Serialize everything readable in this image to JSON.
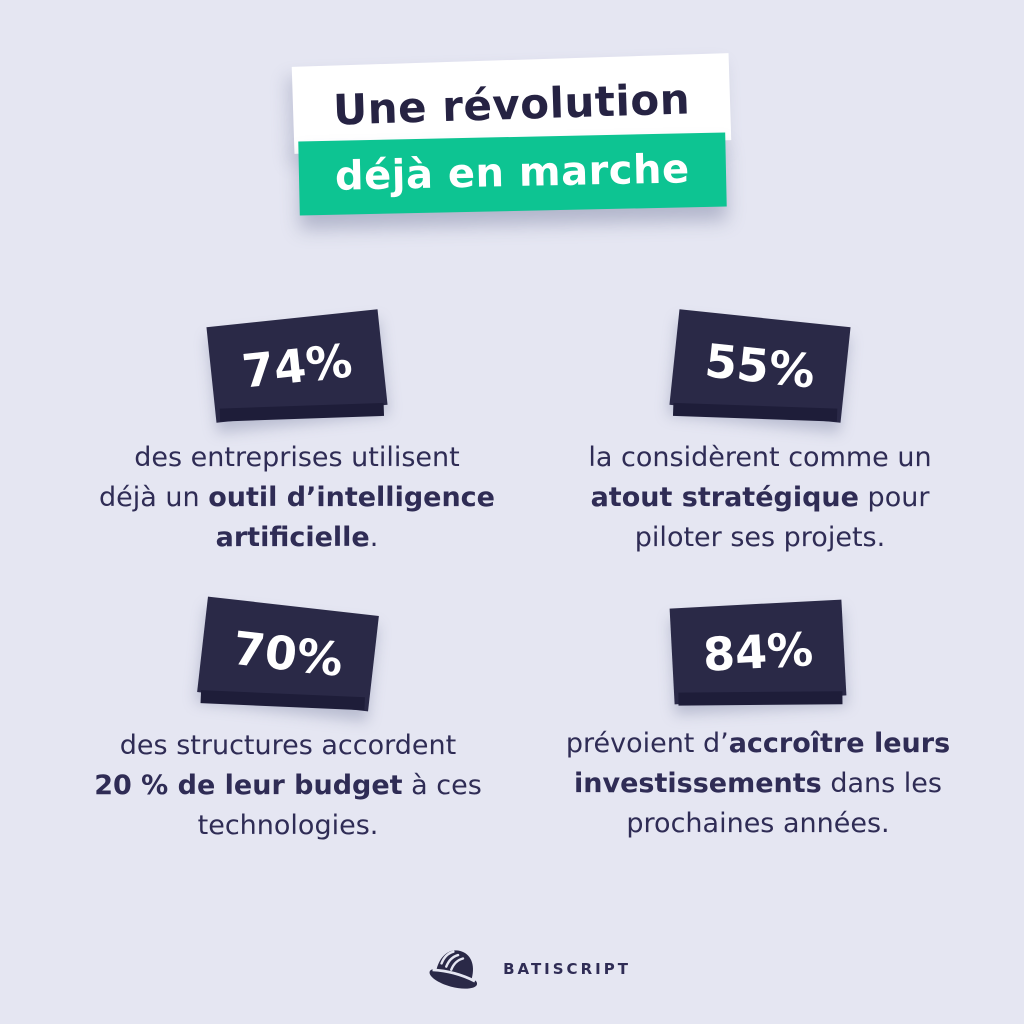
{
  "poster": {
    "title": {
      "line1": "Une révolution",
      "line2": "déjà en marche"
    },
    "stats": [
      {
        "value": "74%",
        "lines": [
          [
            {
              "t": "des entreprises utilisent",
              "b": false
            }
          ],
          [
            {
              "t": "déjà un ",
              "b": false
            },
            {
              "t": "outil d’intelligence",
              "b": true
            }
          ],
          [
            {
              "t": "artificielle",
              "b": true
            },
            {
              "t": ".",
              "b": false
            }
          ]
        ]
      },
      {
        "value": "55%",
        "lines": [
          [
            {
              "t": "la considèrent comme un",
              "b": false
            }
          ],
          [
            {
              "t": "atout stratégique",
              "b": true
            },
            {
              "t": " pour",
              "b": false
            }
          ],
          [
            {
              "t": "piloter ses projets.",
              "b": false
            }
          ]
        ]
      },
      {
        "value": "70%",
        "lines": [
          [
            {
              "t": "des structures accordent",
              "b": false
            }
          ],
          [
            {
              "t": "20 % de leur budget",
              "b": true
            },
            {
              "t": " à ces",
              "b": false
            }
          ],
          [
            {
              "t": "technologies.",
              "b": false
            }
          ]
        ]
      },
      {
        "value": "84%",
        "lines": [
          [
            {
              "t": "prévoient d’",
              "b": false
            },
            {
              "t": "accroître leurs",
              "b": true
            }
          ],
          [
            {
              "t": "investissements",
              "b": true
            },
            {
              "t": " dans les",
              "b": false
            }
          ],
          [
            {
              "t": "prochaines années.",
              "b": false
            }
          ]
        ]
      }
    ],
    "footer": {
      "brand": "BATISCRIPT",
      "logo_icon": "hard-hat-icon"
    },
    "colors": {
      "background": "#e5e6f2",
      "navy_box": "#2a2947",
      "navy_fold": "#1e1d39",
      "text_navy": "#2f2c55",
      "title_navy": "#262343",
      "teal": "#0dc492",
      "white": "#ffffff"
    }
  },
  "chart_data": {
    "type": "table",
    "title": "Une révolution déjà en marche",
    "categories": [
      "des entreprises utilisent déjà un outil d’intelligence artificielle",
      "la considèrent comme un atout stratégique pour piloter ses projets",
      "des structures accordent 20 % de leur budget à ces technologies",
      "prévoient d’accroître leurs investissements dans les prochaines années"
    ],
    "values": [
      74,
      55,
      70,
      84
    ],
    "unit": "%"
  }
}
